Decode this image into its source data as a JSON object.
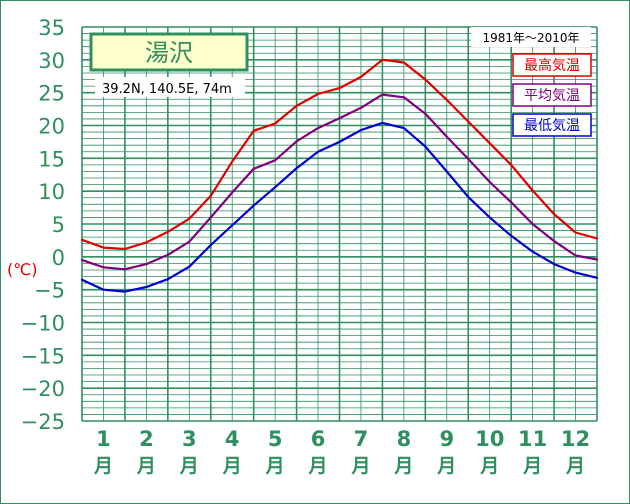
{
  "chart_data": {
    "type": "line",
    "title": "湯沢",
    "location": "39.2N, 140.5E, 74m",
    "period": "1981年〜2010年",
    "ylabel": "(℃)",
    "ylim": [
      -25,
      35
    ],
    "yticks": [
      35,
      30,
      25,
      20,
      15,
      10,
      5,
      0,
      -5,
      -10,
      -15,
      -20,
      -25
    ],
    "ytick_labels": [
      "35",
      "30",
      "25",
      "20",
      "15",
      "10",
      "5",
      "0",
      "−5",
      "−10",
      "−15",
      "−20",
      "−25"
    ],
    "months": [
      {
        "num": "1",
        "unit": "月"
      },
      {
        "num": "2",
        "unit": "月"
      },
      {
        "num": "3",
        "unit": "月"
      },
      {
        "num": "4",
        "unit": "月"
      },
      {
        "num": "5",
        "unit": "月"
      },
      {
        "num": "6",
        "unit": "月"
      },
      {
        "num": "7",
        "unit": "月"
      },
      {
        "num": "8",
        "unit": "月"
      },
      {
        "num": "9",
        "unit": "月"
      },
      {
        "num": "10",
        "unit": "月"
      },
      {
        "num": "11",
        "unit": "月"
      },
      {
        "num": "12",
        "unit": "月"
      }
    ],
    "grid": true,
    "x": [
      0,
      0.5,
      1,
      1.5,
      2,
      2.5,
      3,
      3.5,
      4,
      4.5,
      5,
      5.5,
      6,
      6.5,
      7,
      7.5,
      8,
      8.5,
      9,
      9.5,
      10,
      10.5,
      11,
      11.5,
      12
    ],
    "series": [
      {
        "name": "最高気温",
        "color": "#e00000",
        "values": [
          2.6,
          1.4,
          1.2,
          2.2,
          3.8,
          5.8,
          9.3,
          14.5,
          19.2,
          20.3,
          23.0,
          24.8,
          25.7,
          27.4,
          30.0,
          29.6,
          27.0,
          23.9,
          20.6,
          17.3,
          14.0,
          10.1,
          6.5,
          3.7,
          2.8
        ]
      },
      {
        "name": "平均気温",
        "color": "#800080",
        "values": [
          -0.5,
          -1.6,
          -1.9,
          -1.1,
          0.3,
          2.3,
          6.0,
          9.8,
          13.4,
          14.7,
          17.6,
          19.6,
          21.1,
          22.7,
          24.7,
          24.3,
          21.8,
          18.3,
          14.9,
          11.4,
          8.3,
          5.0,
          2.4,
          0.2,
          -0.4
        ]
      },
      {
        "name": "最低気温",
        "color": "#0000d0",
        "values": [
          -3.5,
          -5.0,
          -5.3,
          -4.6,
          -3.4,
          -1.5,
          1.8,
          4.8,
          7.8,
          10.6,
          13.5,
          16.0,
          17.5,
          19.3,
          20.4,
          19.6,
          16.8,
          13.0,
          9.1,
          6.0,
          3.2,
          0.8,
          -1.1,
          -2.4,
          -3.2
        ]
      }
    ]
  }
}
